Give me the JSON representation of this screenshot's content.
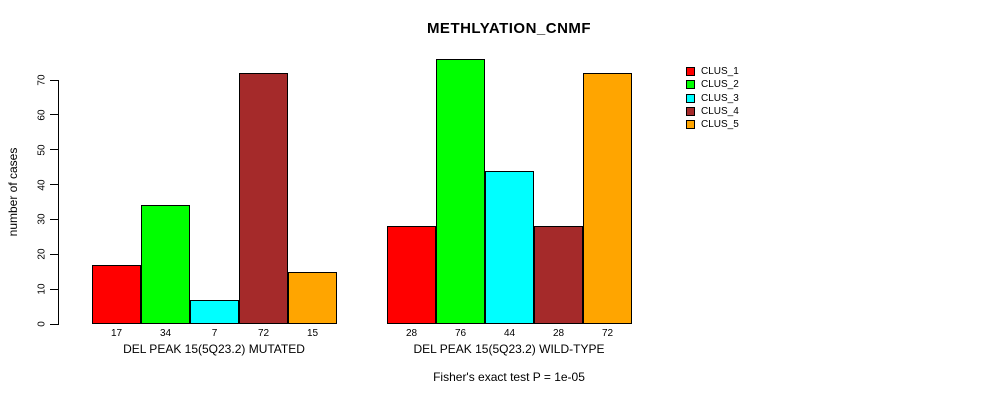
{
  "title": "METHLYATION_CNMF",
  "footer": "Fisher's exact test P = 1e-05",
  "chart_data": {
    "type": "bar",
    "title": "METHLYATION_CNMF",
    "ylabel": "number of cases",
    "xlabel": "",
    "ylim": [
      0,
      76
    ],
    "yticks": [
      0,
      10,
      20,
      30,
      40,
      50,
      60,
      70
    ],
    "grid": false,
    "legend_position": "right",
    "series_labels": [
      "CLUS_1",
      "CLUS_2",
      "CLUS_3",
      "CLUS_4",
      "CLUS_5"
    ],
    "series_colors": [
      "#ff0000",
      "#00ff00",
      "#00ffff",
      "#a52a2a",
      "#ffa500"
    ],
    "groups": [
      {
        "label": "DEL PEAK 15(5Q23.2) MUTATED",
        "values": [
          17,
          34,
          7,
          72,
          15
        ]
      },
      {
        "label": "DEL PEAK 15(5Q23.2) WILD-TYPE",
        "values": [
          28,
          76,
          44,
          28,
          72
        ]
      }
    ],
    "annotation": "Fisher's exact test P = 1e-05"
  }
}
